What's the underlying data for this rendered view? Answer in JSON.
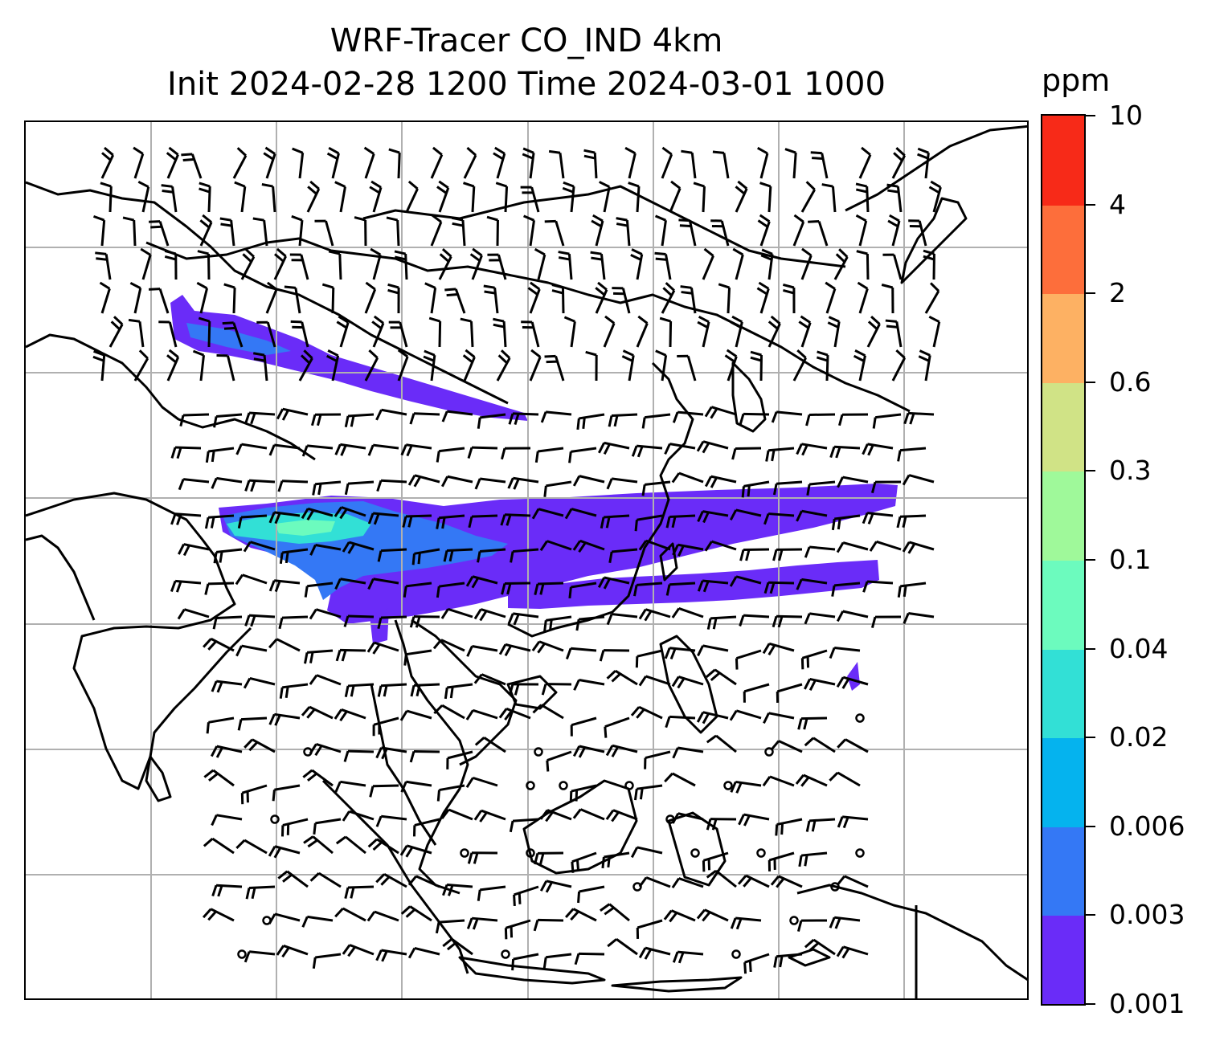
{
  "title": {
    "line1": "WRF-Tracer CO_IND 4km",
    "line2": "Init 2024-02-28 1200 Time 2024-03-01 1000"
  },
  "colorbar": {
    "unit": "ppm",
    "levels": [
      "0.001",
      "0.003",
      "0.006",
      "0.02",
      "0.04",
      "0.1",
      "0.3",
      "0.6",
      "2",
      "4",
      "10"
    ],
    "colors": [
      "#6a2cf8",
      "#3478f5",
      "#05b3ee",
      "#32e0d6",
      "#6cfbbe",
      "#9ff99a",
      "#d0e386",
      "#fdb163",
      "#fd6e3b",
      "#f72a18"
    ]
  },
  "map": {
    "tracer_colors": {
      "low": "#6a2cf8",
      "mid": "#3478f5",
      "high": "#32e0d6",
      "peak": "#6cfbbe"
    },
    "coast_color": "#000000",
    "grid_color": "#b0b0b0"
  }
}
